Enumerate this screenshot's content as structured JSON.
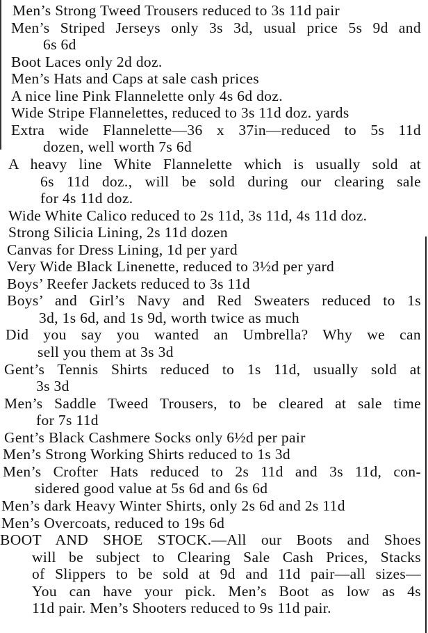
{
  "items": [
    {
      "lines": [
        "Men’s Strong Tweed Trousers reduced to 3s 11d pair"
      ]
    },
    {
      "lines": [
        "Men’s Striped Jerseys only 3s 3d, usual price 5s 9d and",
        "6s 6d"
      ]
    },
    {
      "lines": [
        "Boot Laces only 2d doz."
      ]
    },
    {
      "lines": [
        "Men’s Hats and Caps at sale cash prices"
      ]
    },
    {
      "lines": [
        "A nice line Pink Flannelette only 4s 6d doz."
      ]
    },
    {
      "lines": [
        "Wide Stripe Flannelettes, reduced to 3s 11d doz. yards"
      ]
    },
    {
      "lines": [
        "Extra wide Flannelette—36 x 37in—reduced to 5s 11d",
        "dozen, well worth 7s 6d"
      ]
    },
    {
      "lines": [
        "A heavy line White Flannelette which is usually sold at",
        "6s 11d doz., will be sold during our clearing sale",
        "for 4s 11d doz."
      ]
    },
    {
      "lines": [
        "Wide White Calico reduced to 2s 11d, 3s 11d, 4s 11d doz."
      ]
    },
    {
      "lines": [
        "Strong Silicia Lining, 2s 11d dozen"
      ]
    },
    {
      "lines": [
        "Canvas for Dress Lining, 1d per yard"
      ]
    },
    {
      "lines": [
        "Very Wide Black Linenette, reduced to 3½d per yard"
      ]
    },
    {
      "lines": [
        "Boys’ Reefer Jackets reduced to 3s 11d"
      ]
    },
    {
      "lines": [
        "Boys’ and Girl’s Navy and Red Sweaters reduced to 1s",
        "3d, 1s 6d, and 1s 9d, worth twice as much"
      ]
    },
    {
      "lines": [
        "Did you say you wanted an Umbrella? Why we can",
        "sell you them at 3s 3d"
      ]
    },
    {
      "lines": [
        "Gent’s Tennis Shirts reduced to 1s 11d, usually sold at",
        "3s 3d"
      ]
    },
    {
      "lines": [
        "Men’s Saddle Tweed Trousers, to be cleared at sale time",
        "for 7s 11d"
      ]
    },
    {
      "lines": [
        "Gent’s Black Cashmere Socks only 6½d per pair"
      ]
    },
    {
      "lines": [
        "Men’s Strong Working Shirts reduced to 1s 3d"
      ]
    },
    {
      "lines": [
        "Men’s Crofter Hats reduced to 2s 11d and 3s 11d, con-",
        "sidered good value at 5s 6d and 6s 6d"
      ]
    },
    {
      "lines": [
        "Men’s dark Heavy Winter Shirts, only 2s 6d and 2s 11d"
      ]
    },
    {
      "lines": [
        "Men’s Overcoats, reduced to 19s 6d"
      ]
    },
    {
      "lines": [
        "BOOT AND SHOE STOCK.—All our Boots and Shoes",
        "will be subject to Clearing Sale Cash Prices, Stacks",
        "of Slippers to be sold at 9d and 11d pair—all sizes—",
        "You can have your pick. Men’s Boot as low as 4s",
        "11d pair. Men’s Shooters reduced to 9s 11d pair."
      ]
    }
  ]
}
